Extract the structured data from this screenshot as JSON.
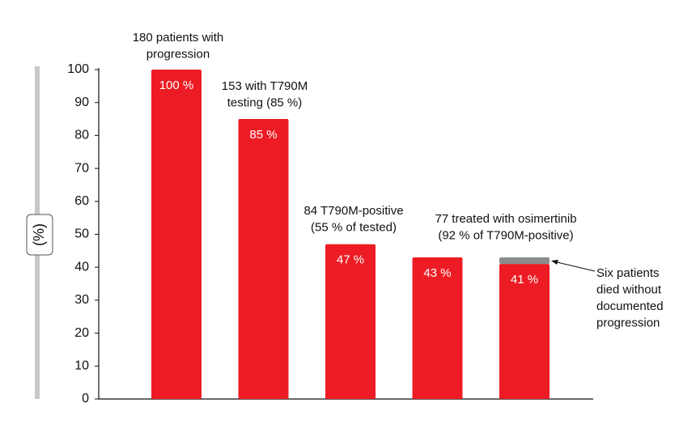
{
  "chart_data": {
    "type": "bar",
    "ylabel": "(%)",
    "categories": [
      null,
      null,
      null,
      null,
      null
    ],
    "series": [
      {
        "color": "#ed1c24",
        "values": [
          100,
          85,
          47,
          43,
          41
        ],
        "value_labels": [
          "100 %",
          "85 %",
          "47 %",
          "43 %",
          "41 %"
        ]
      },
      {
        "color": "#8c8c8c",
        "values": [
          null,
          null,
          null,
          null,
          2
        ]
      }
    ],
    "ylim": [
      0,
      100
    ],
    "yticks": [
      0,
      10,
      20,
      30,
      40,
      50,
      60,
      70,
      80,
      90,
      100
    ],
    "annotations": [
      {
        "lines": [
          "180 patients with",
          "progression"
        ]
      },
      {
        "lines": [
          "153 with T790M",
          "testing (85 %)"
        ]
      },
      {
        "lines": [
          "84 T790M-positive",
          "(55 % of tested)"
        ]
      },
      {
        "lines": [
          "77 treated with osimertinib",
          "(92 % of T790M-positive)"
        ]
      },
      {
        "lines": [
          "Six patients",
          "died without",
          "documented",
          "progression"
        ]
      }
    ]
  }
}
